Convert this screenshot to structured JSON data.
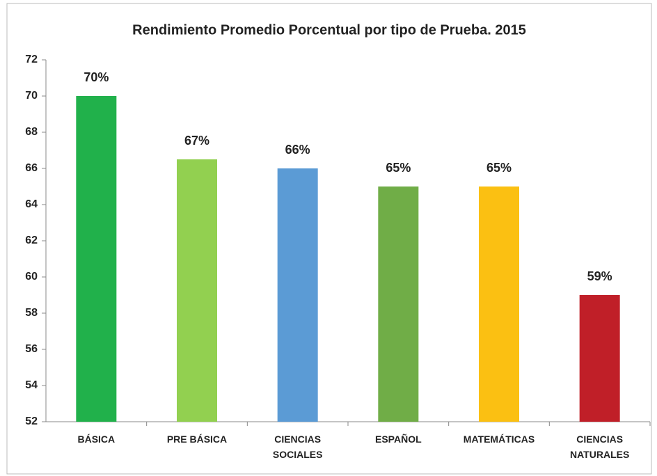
{
  "chart_data": {
    "type": "bar",
    "title": "Rendimiento Promedio Porcentual por tipo de Prueba. 2015",
    "categories": [
      "BÁSICA",
      "PRE BÁSICA",
      "CIENCIAS SOCIALES",
      "ESPAÑOL",
      "MATEMÁTICAS",
      "CIENCIAS NATURALES"
    ],
    "values": [
      70,
      66.5,
      66,
      65,
      65,
      59
    ],
    "value_labels": [
      "70%",
      "67%",
      "66%",
      "65%",
      "65%",
      "59%"
    ],
    "colors": [
      "#21b14b",
      "#92d050",
      "#5b9bd5",
      "#70ad47",
      "#fbc012",
      "#c01f28"
    ],
    "ylim": [
      52,
      72
    ],
    "yticks": [
      52,
      54,
      56,
      58,
      60,
      62,
      64,
      66,
      68,
      70,
      72
    ],
    "grid": false
  }
}
